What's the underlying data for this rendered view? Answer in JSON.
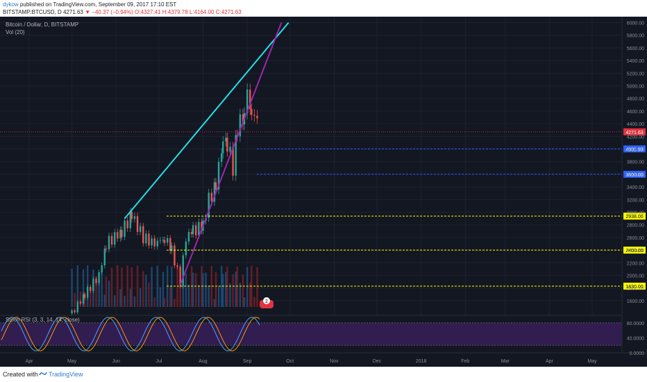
{
  "header": {
    "author": "dykow",
    "published": "published on TradingView.com, September 09, 2017 17:10 EST",
    "symbol": "BITSTAMP:BTCUSD, D",
    "last": "4271.63",
    "change": "−40.37 (−0.94%)",
    "open": "O:4327.41",
    "high": "H:4379.78",
    "low": "L:4164.00",
    "close": "C:4271.63"
  },
  "chart": {
    "title": "Bitcoin / Dollar, D, BITSTAMP",
    "volume_label": "Vol (20)",
    "rsi_label": "Stoch RSI (3, 3, 14, 14, close)",
    "comment_badge": "2"
  },
  "footer": {
    "created": "Created with",
    "brand": "TradingView"
  },
  "colors": {
    "background": "#131722",
    "up": "#26a69a",
    "down": "#ef5350",
    "cyan_trendline": "#26e0e6",
    "purple_trendline": "#9c27b0",
    "yellow_level": "#ffff00",
    "blue_level": "#2962ff",
    "last_price": "#e2333e"
  },
  "chart_data": {
    "type": "candlestick",
    "x_ticks": [
      "Apr",
      "May",
      "Jun",
      "Jul",
      "Aug",
      "Sep",
      "Oct",
      "Nov",
      "Dec",
      "2018",
      "Feb",
      "Mar",
      "Apr",
      "May"
    ],
    "y_ticks": [
      1600,
      1800,
      2000,
      2200,
      2400,
      2600,
      2800,
      3000,
      3200,
      3400,
      3600,
      3800,
      4000,
      4200,
      4400,
      4600,
      4800,
      5000,
      5200,
      5400,
      5600,
      5800,
      6000
    ],
    "ylim": [
      1500,
      6050
    ],
    "price_series": [
      [
        "2017-05-01",
        1400
      ],
      [
        "2017-05-10",
        1700
      ],
      [
        "2017-05-20",
        2000
      ],
      [
        "2017-05-25",
        2500
      ],
      [
        "2017-06-05",
        2700
      ],
      [
        "2017-06-12",
        2950
      ],
      [
        "2017-06-20",
        2600
      ],
      [
        "2017-06-28",
        2500
      ],
      [
        "2017-07-05",
        2600
      ],
      [
        "2017-07-10",
        2400
      ],
      [
        "2017-07-16",
        1900
      ],
      [
        "2017-07-20",
        2600
      ],
      [
        "2017-07-25",
        2700
      ],
      [
        "2017-08-01",
        2800
      ],
      [
        "2017-08-05",
        3200
      ],
      [
        "2017-08-10",
        3400
      ],
      [
        "2017-08-15",
        4200
      ],
      [
        "2017-08-18",
        4100
      ],
      [
        "2017-08-22",
        3700
      ],
      [
        "2017-08-25",
        4300
      ],
      [
        "2017-08-30",
        4600
      ],
      [
        "2017-09-01",
        4950
      ],
      [
        "2017-09-04",
        4400
      ],
      [
        "2017-09-06",
        4650
      ],
      [
        "2017-09-09",
        4271.63
      ]
    ],
    "last_price": "4271.63",
    "horizontal_levels": [
      {
        "value": "4001.93",
        "color": "blue"
      },
      {
        "value": "3600.00",
        "color": "blue"
      },
      {
        "value": "2938.00",
        "color": "yellow"
      },
      {
        "value": "2400.00",
        "color": "yellow"
      },
      {
        "value": "1830.00",
        "color": "yellow"
      }
    ],
    "trendlines": [
      {
        "color": "cyan",
        "from": [
          "2017-06-07",
          2900
        ],
        "to": [
          "2017-09-30",
          6000
        ]
      },
      {
        "color": "purple",
        "from": [
          "2017-07-16",
          1850
        ],
        "to": [
          "2017-09-25",
          6000
        ]
      }
    ],
    "rsi_ticks": [
      "80.0000",
      "40.0000",
      "0.0000"
    ],
    "rsi_ylim": [
      0,
      100
    ]
  }
}
